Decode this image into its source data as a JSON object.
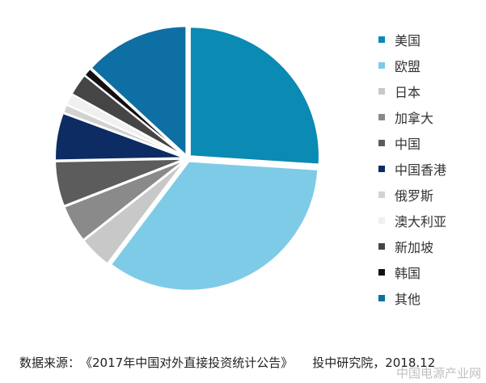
{
  "chart_data": {
    "type": "pie",
    "slices": [
      {
        "label": "美国",
        "value": 25.5,
        "color": "#0b8ab3"
      },
      {
        "label": "欧盟",
        "value": 33.6,
        "color": "#7ecbe8"
      },
      {
        "label": "日本",
        "value": 4.0,
        "color": "#c8c8c8"
      },
      {
        "label": "加拿大",
        "value": 4.6,
        "color": "#8a8a8a"
      },
      {
        "label": "中国",
        "value": 5.5,
        "color": "#5c5c5c"
      },
      {
        "label": "中国香港",
        "value": 5.8,
        "color": "#0c2c63"
      },
      {
        "label": "俄罗斯",
        "value": 1.0,
        "color": "#d2d2d2"
      },
      {
        "label": "澳大利亚",
        "value": 1.4,
        "color": "#f0f0f0"
      },
      {
        "label": "新加坡",
        "value": 2.7,
        "color": "#454545"
      },
      {
        "label": "韩国",
        "value": 1.0,
        "color": "#111111"
      },
      {
        "label": "其他",
        "value": 12.9,
        "color": "#0d6fa3"
      }
    ],
    "legend_position": "right"
  },
  "legend_items": [
    "美国",
    "欧盟",
    "日本",
    "加拿大",
    "中国",
    "中国香港",
    "俄罗斯",
    "澳大利亚",
    "新加坡",
    "韩国",
    "其他"
  ],
  "source": {
    "label": "数据来源：",
    "report": "《2017年中国对外直接投资统计公告》",
    "publisher": "投中研究院，2018.12"
  },
  "watermark": "中国电源产业网"
}
